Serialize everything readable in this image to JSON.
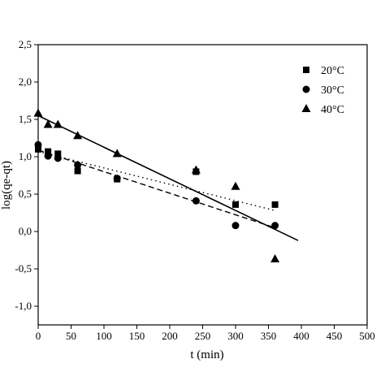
{
  "chart_data": {
    "type": "scatter",
    "xlabel": "t (min)",
    "ylabel": "log(qe-qt)",
    "xlim": [
      0,
      500
    ],
    "ylim": [
      -1.25,
      2.5
    ],
    "x_ticks": [
      0,
      50,
      100,
      150,
      200,
      250,
      300,
      350,
      400,
      450,
      500
    ],
    "x_tick_labels": [
      "0",
      "50",
      "100",
      "150",
      "200",
      "250",
      "300",
      "350",
      "400",
      "450",
      "500"
    ],
    "y_ticks": [
      -1.0,
      -0.5,
      0.0,
      0.5,
      1.0,
      1.5,
      2.0,
      2.5
    ],
    "y_tick_labels": [
      "-1,0",
      "-0,5",
      "0,0",
      "0,5",
      "1,0",
      "1,5",
      "2,0",
      "2,5"
    ],
    "grid": false,
    "legend_position": "top-right",
    "series": [
      {
        "name": "20°C",
        "marker": "square",
        "line_style": "dotted",
        "color": "#000000",
        "x": [
          0,
          15,
          30,
          60,
          120,
          240,
          300,
          360
        ],
        "y": [
          1.1,
          1.07,
          1.04,
          0.81,
          0.7,
          0.8,
          0.36,
          0.36
        ],
        "fit": {
          "x": [
            0,
            360
          ],
          "y": [
            1.07,
            0.28
          ]
        }
      },
      {
        "name": "30°C",
        "marker": "circle",
        "line_style": "dashed",
        "color": "#000000",
        "x": [
          0,
          15,
          30,
          60,
          120,
          240,
          300,
          360
        ],
        "y": [
          1.16,
          1.01,
          0.98,
          0.89,
          0.71,
          0.41,
          0.08,
          0.08
        ],
        "fit": {
          "x": [
            0,
            360
          ],
          "y": [
            1.09,
            0.05
          ]
        }
      },
      {
        "name": "40°C",
        "marker": "triangle",
        "line_style": "solid",
        "color": "#000000",
        "x": [
          0,
          15,
          30,
          60,
          120,
          240,
          300,
          360
        ],
        "y": [
          1.58,
          1.43,
          1.43,
          1.28,
          1.04,
          0.82,
          0.6,
          -0.37
        ],
        "fit": {
          "x": [
            0,
            395
          ],
          "y": [
            1.55,
            -0.12
          ]
        }
      }
    ]
  }
}
